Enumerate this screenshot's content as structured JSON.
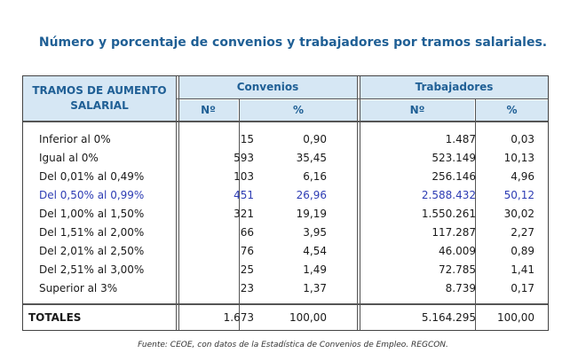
{
  "title": "Número y porcentaje de convenios y trabajadores por tramos salariales.",
  "headers": {
    "tramos_line1": "TRAMOS DE AUMENTO",
    "tramos_line2": "SALARIAL",
    "convenios": "Convenios",
    "trabajadores": "Trabajadores",
    "num": "Nº",
    "pct": "%"
  },
  "rows": [
    {
      "label": "Inferior al 0%",
      "conv_n": "15",
      "conv_pct": "0,90",
      "trab_n": "1.487",
      "trab_pct": "0,03"
    },
    {
      "label": "Igual al 0%",
      "conv_n": "593",
      "conv_pct": "35,45",
      "trab_n": "523.149",
      "trab_pct": "10,13"
    },
    {
      "label": "Del 0,01% al 0,49%",
      "conv_n": "103",
      "conv_pct": "6,16",
      "trab_n": "256.146",
      "trab_pct": "4,96"
    },
    {
      "label": "Del 0,50% al 0,99%",
      "conv_n": "451",
      "conv_pct": "26,96",
      "trab_n": "2.588.432",
      "trab_pct": "50,12"
    },
    {
      "label": "Del 1,00% al 1,50%",
      "conv_n": "321",
      "conv_pct": "19,19",
      "trab_n": "1.550.261",
      "trab_pct": "30,02"
    },
    {
      "label": "Del 1,51% al 2,00%",
      "conv_n": "66",
      "conv_pct": "3,95",
      "trab_n": "117.287",
      "trab_pct": "2,27"
    },
    {
      "label": "Del 2,01% al 2,50%",
      "conv_n": "76",
      "conv_pct": "4,54",
      "trab_n": "46.009",
      "trab_pct": "0,89"
    },
    {
      "label": "Del 2,51% al 3,00%",
      "conv_n": "25",
      "conv_pct": "1,49",
      "trab_n": "72.785",
      "trab_pct": "1,41"
    },
    {
      "label": "Superior al 3%",
      "conv_n": "23",
      "conv_pct": "1,37",
      "trab_n": "8.739",
      "trab_pct": "0,17"
    }
  ],
  "totals": {
    "label": "TOTALES",
    "conv_n": "1.673",
    "conv_pct": "100,00",
    "trab_n": "5.164.295",
    "trab_pct": "100,00"
  },
  "source": "Fuente: CEOE, con datos de la Estadística de Convenios de Empleo. REGCON.",
  "colors": {
    "header_bg": "#d6e7f4",
    "header_text": "#1f5f95",
    "highlight_row": "#2e3db4"
  },
  "highlighted_row_index": 3
}
